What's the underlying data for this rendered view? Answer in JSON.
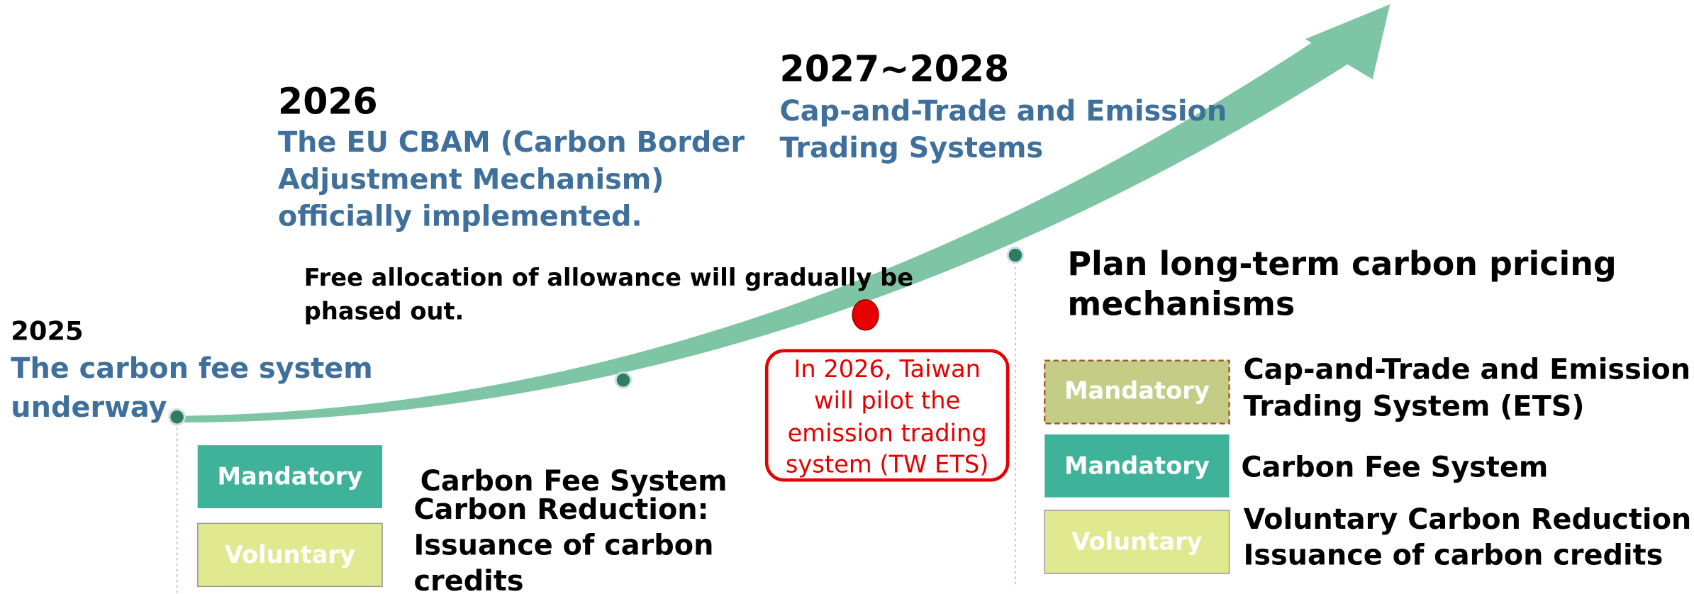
{
  "milestone_2025": {
    "year": "2025",
    "lines": [
      "The carbon fee system",
      "underway"
    ]
  },
  "milestone_2026": {
    "year": "2026",
    "lines": [
      "The EU CBAM (Carbon Border",
      "Adjustment Mechanism)",
      "officially implemented."
    ]
  },
  "milestone_2027": {
    "year": "2027~2028",
    "lines": [
      "Cap-and-Trade and Emission",
      "Trading Systems"
    ]
  },
  "free_allocation": [
    "Free allocation of allowance will gradually be",
    "phased out."
  ],
  "taiwan_pilot": [
    "In 2026, Taiwan",
    "will pilot the",
    "emission trading",
    "system (TW ETS)"
  ],
  "left_boxes": {
    "mandatory": "Mandatory",
    "voluntary": "Voluntary"
  },
  "left_texts": [
    "Carbon Fee System",
    "Carbon Reduction:",
    "Issuance of carbon",
    "credits"
  ],
  "long_term": [
    "Plan long-term carbon pricing",
    "mechanisms"
  ],
  "right_items": [
    {
      "box": "Mandatory",
      "lines": [
        "Cap-and-Trade and Emission",
        "Trading System (ETS)"
      ]
    },
    {
      "box": "Mandatory",
      "lines": [
        "Carbon Fee System"
      ]
    },
    {
      "box": "Voluntary",
      "lines": [
        "Voluntary Carbon Reduction:",
        "Issuance of carbon credits"
      ]
    }
  ]
}
